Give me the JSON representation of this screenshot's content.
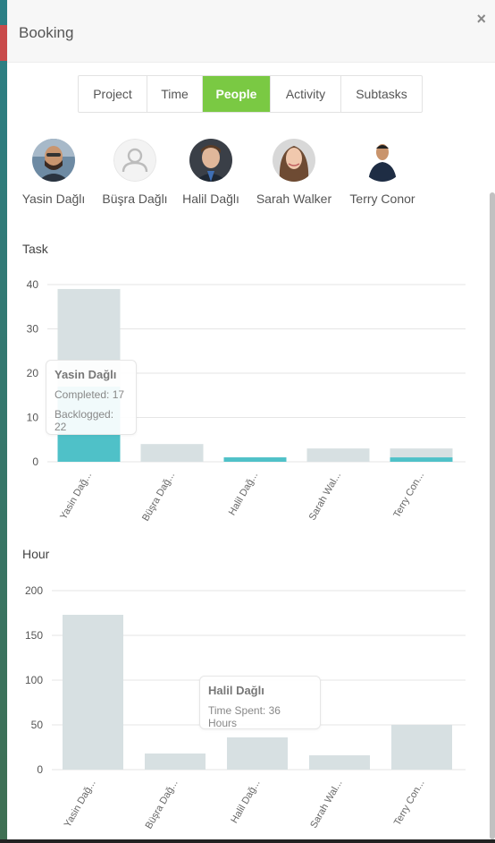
{
  "modal": {
    "title": "Booking",
    "close_label": "×"
  },
  "tabs": [
    {
      "label": "Project",
      "active": false
    },
    {
      "label": "Time",
      "active": false
    },
    {
      "label": "People",
      "active": true
    },
    {
      "label": "Activity",
      "active": false
    },
    {
      "label": "Subtasks",
      "active": false
    }
  ],
  "people": [
    {
      "name": "Yasin Dağlı"
    },
    {
      "name": "Büşra Dağlı"
    },
    {
      "name": "Halil Dağlı"
    },
    {
      "name": "Sarah Walker"
    },
    {
      "name": "Terry Conor"
    }
  ],
  "task_section": {
    "title": "Task"
  },
  "hour_section": {
    "title": "Hour"
  },
  "task_tooltip": {
    "name": "Yasin Dağlı",
    "completed": "Completed: 17",
    "backlogged": "Backlogged: 22"
  },
  "hour_tooltip": {
    "name": "Halil Dağlı",
    "time_spent": "Time Spent: 36 Hours"
  },
  "colors": {
    "accent": "#7ac943",
    "completed": "#4fc1c8",
    "backlogged": "#d7e0e2",
    "hours": "#d7e0e2"
  },
  "chart_data": [
    {
      "type": "bar",
      "title": "Task",
      "categories": [
        "Yasin Dağ...",
        "Büşra Dağ...",
        "Halil Dağ...",
        "Sarah Wal...",
        "Terry Con..."
      ],
      "series": [
        {
          "name": "Completed",
          "values": [
            17,
            0,
            1,
            0,
            1
          ]
        },
        {
          "name": "Backlogged",
          "values": [
            22,
            4,
            0,
            3,
            2
          ]
        }
      ],
      "stacked": true,
      "ylim": [
        0,
        40
      ],
      "yticks": [
        0,
        10,
        20,
        30,
        40
      ],
      "grid": true
    },
    {
      "type": "bar",
      "title": "Hour",
      "categories": [
        "Yasin Dağ...",
        "Büşra Dağ...",
        "Halil Dağ...",
        "Sarah Wal...",
        "Terry Con..."
      ],
      "series": [
        {
          "name": "Time Spent",
          "values": [
            173,
            18,
            36,
            16,
            50
          ]
        }
      ],
      "ylim": [
        0,
        200
      ],
      "yticks": [
        0,
        50,
        100,
        150,
        200
      ],
      "grid": true
    }
  ]
}
